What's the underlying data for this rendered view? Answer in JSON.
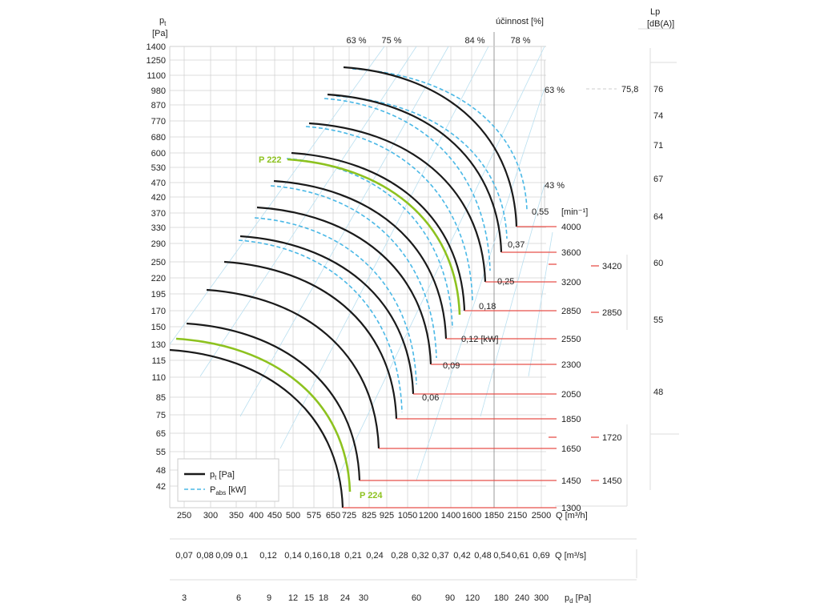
{
  "chart_data": {
    "type": "line",
    "y_axis": {
      "label": "p",
      "label_sub": "t",
      "unit": "[Pa]",
      "ticks": [
        "1400",
        "1250",
        "1100",
        "980",
        "870",
        "770",
        "680",
        "600",
        "530",
        "470",
        "420",
        "370",
        "330",
        "290",
        "250",
        "220",
        "195",
        "170",
        "150",
        "130",
        "115",
        "110",
        "85",
        "75",
        "65",
        "55",
        "48",
        "42"
      ]
    },
    "x_axis_flow_m3h": {
      "unit": "Q [m³/h]",
      "ticks": [
        "250",
        "300",
        "350",
        "400",
        "450",
        "500",
        "575",
        "650",
        "725",
        "825",
        "925",
        "1050",
        "1200",
        "1400",
        "1600",
        "1850",
        "2150",
        "2500"
      ]
    },
    "x_axis_flow_m3s": {
      "unit": "Q [m³/s]",
      "ticks": [
        "0,07",
        "0,08",
        "0,09",
        "0,1",
        "0,12",
        "0,14",
        "0,16",
        "0,18",
        "0,21",
        "0,24",
        "0,28",
        "0,32",
        "0,37",
        "0,42",
        "0,48",
        "0,54",
        "0,61",
        "0,69"
      ]
    },
    "x_axis_pd": {
      "unit": "p",
      "unit_sub": "d",
      "unit_tail": " [Pa]",
      "ticks": [
        "3",
        "6",
        "9",
        "12",
        "15",
        "18",
        "24",
        "30",
        "60",
        "90",
        "120",
        "180",
        "240",
        "300"
      ]
    },
    "efficiency": {
      "title": "účinnost [%]",
      "top_labels": [
        "63 %",
        "75 %",
        "84 %",
        "78 %"
      ],
      "side_labels": [
        "63 %",
        "43 %"
      ]
    },
    "speed_axis": {
      "unit": "[min⁻¹]",
      "values": [
        "4000",
        "3600",
        "3200",
        "2850",
        "2550",
        "2300",
        "2050",
        "1850",
        "1650",
        "1450",
        "1300"
      ]
    },
    "power_labels": [
      "0,55",
      "0,37",
      "0,25",
      "0,18",
      "0,12 [kW]",
      "0,09",
      "0,06"
    ],
    "sound": {
      "title": "Lp",
      "unit": "[dB(A)]",
      "ticks": [
        "76",
        "74",
        "71",
        "67",
        "64",
        "60",
        "55",
        "48"
      ],
      "marker_value": "75,8",
      "speed_markers": [
        "3420",
        "2850",
        "1720",
        "1450"
      ]
    },
    "highlighted_curves": [
      "P 222",
      "P 224"
    ],
    "legend": {
      "position": "bottom-left",
      "items": [
        {
          "label": "p",
          "sub": "t",
          "tail": " [Pa]",
          "style": "solid"
        },
        {
          "label": "P",
          "sub": "abs",
          "tail": " [kW]",
          "style": "dashed"
        }
      ]
    },
    "colors": {
      "pressure_curve": "#1a1a1a",
      "power_curve": "#4ab8e6",
      "highlight_curve": "#8dc21f",
      "speed_marker": "#e8504a",
      "grid": "#d0d0d0",
      "efficiency_line": "#b9dff0"
    }
  }
}
